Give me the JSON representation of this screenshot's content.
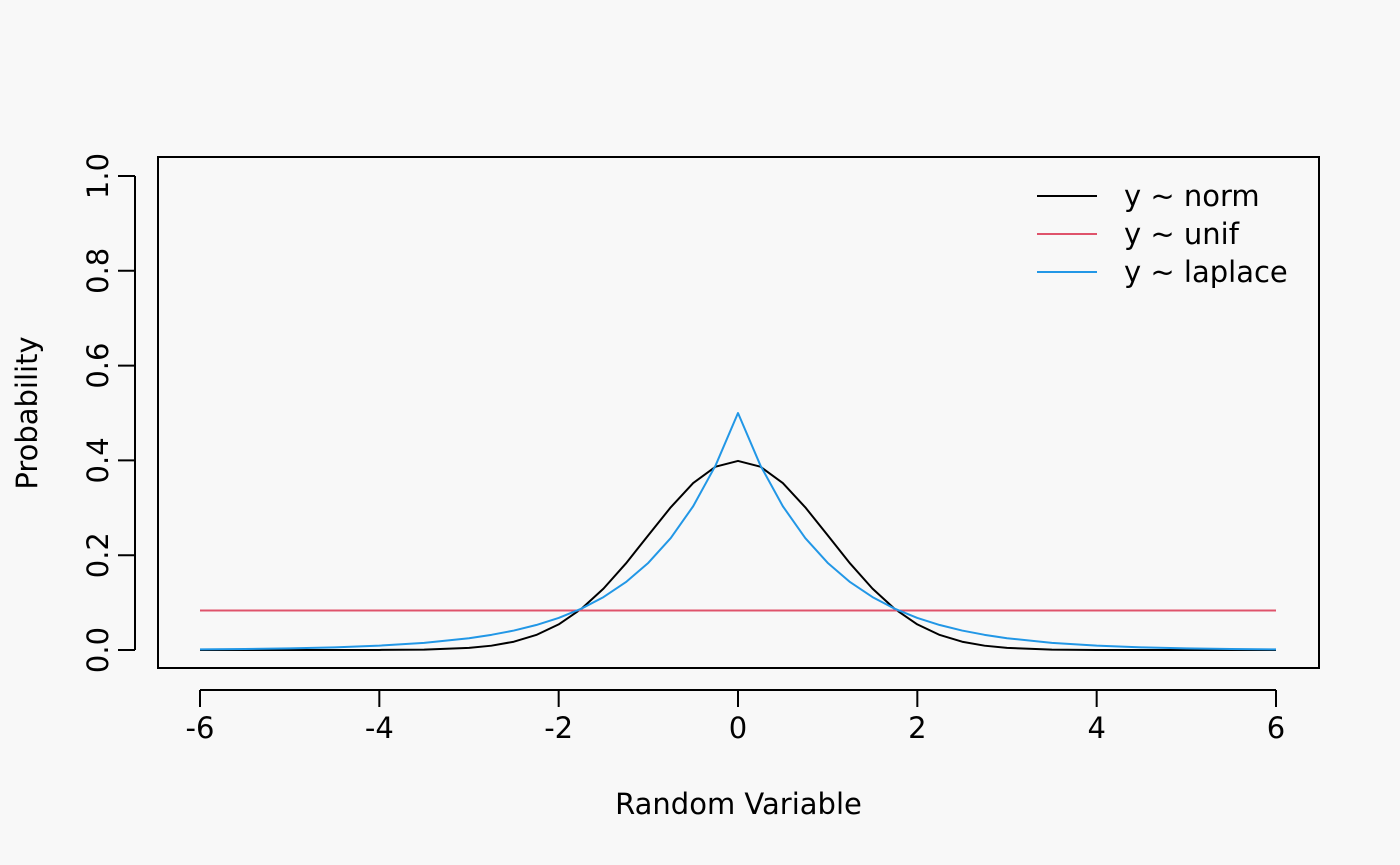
{
  "chart_data": {
    "type": "line",
    "title": "",
    "xlabel": "Random Variable",
    "ylabel": "Probability",
    "xlim": [
      -6,
      6
    ],
    "ylim": [
      0,
      1
    ],
    "x_ticks": [
      -6,
      -4,
      -2,
      0,
      2,
      4,
      6
    ],
    "x_tick_labels": [
      "-6",
      "-4",
      "-2",
      "0",
      "2",
      "4",
      "6"
    ],
    "y_ticks": [
      0,
      0.2,
      0.4,
      0.6,
      0.8,
      1
    ],
    "y_tick_labels": [
      "0.0",
      "0.2",
      "0.4",
      "0.6",
      "0.8",
      "1.0"
    ],
    "grid": false,
    "legend_position": "top-right",
    "x": [
      -6,
      -5.5,
      -5,
      -4.5,
      -4,
      -3.5,
      -3,
      -2.75,
      -2.5,
      -2.25,
      -2,
      -1.75,
      -1.5,
      -1.25,
      -1,
      -0.75,
      -0.5,
      -0.25,
      0,
      0.25,
      0.5,
      0.75,
      1,
      1.25,
      1.5,
      1.75,
      2,
      2.25,
      2.5,
      2.75,
      3,
      3.5,
      4,
      4.5,
      5,
      5.5,
      6
    ],
    "series": [
      {
        "name": "y ~ norm",
        "color": "#000000",
        "values": [
          0,
          0,
          0,
          0,
          0.0001,
          0.0009,
          0.0044,
          0.0091,
          0.0175,
          0.0317,
          0.054,
          0.0863,
          0.1295,
          0.1826,
          0.242,
          0.3011,
          0.3521,
          0.3867,
          0.3989,
          0.3867,
          0.3521,
          0.3011,
          0.242,
          0.1826,
          0.1295,
          0.0863,
          0.054,
          0.0317,
          0.0175,
          0.0091,
          0.0044,
          0.0009,
          0.0001,
          0,
          0,
          0,
          0
        ]
      },
      {
        "name": "y ~ unif",
        "color": "#df536b",
        "values": [
          0.0833,
          0.0833,
          0.0833,
          0.0833,
          0.0833,
          0.0833,
          0.0833,
          0.0833,
          0.0833,
          0.0833,
          0.0833,
          0.0833,
          0.0833,
          0.0833,
          0.0833,
          0.0833,
          0.0833,
          0.0833,
          0.0833,
          0.0833,
          0.0833,
          0.0833,
          0.0833,
          0.0833,
          0.0833,
          0.0833,
          0.0833,
          0.0833,
          0.0833,
          0.0833,
          0.0833,
          0.0833,
          0.0833,
          0.0833,
          0.0833,
          0.0833,
          0.0833
        ]
      },
      {
        "name": "y ~ laplace",
        "color": "#2297e6",
        "values": [
          0.0012,
          0.002,
          0.0034,
          0.0056,
          0.0092,
          0.0151,
          0.0249,
          0.032,
          0.041,
          0.0527,
          0.0677,
          0.0869,
          0.1116,
          0.1433,
          0.1839,
          0.2362,
          0.3033,
          0.3894,
          0.5,
          0.3894,
          0.3033,
          0.2362,
          0.1839,
          0.1433,
          0.1116,
          0.0869,
          0.0677,
          0.0527,
          0.041,
          0.032,
          0.0249,
          0.0151,
          0.0092,
          0.0056,
          0.0034,
          0.002,
          0.0012
        ]
      }
    ]
  }
}
